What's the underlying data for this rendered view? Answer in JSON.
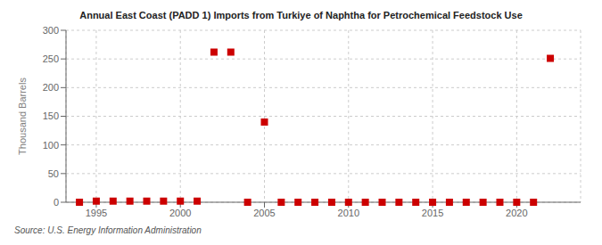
{
  "chart_data": {
    "type": "scatter",
    "title": "Annual East Coast (PADD 1) Imports from Turkiye of Naphtha for Petrochemical Feedstock Use",
    "ylabel": "Thousand Barrels",
    "source": "Source: U.S. Energy Information Administration",
    "x": [
      1994,
      1995,
      1996,
      1997,
      1998,
      1999,
      2000,
      2001,
      2002,
      2003,
      2004,
      2005,
      2006,
      2007,
      2008,
      2009,
      2010,
      2011,
      2012,
      2013,
      2014,
      2015,
      2016,
      2017,
      2018,
      2019,
      2020,
      2021,
      2022
    ],
    "values": [
      0,
      2,
      2,
      2,
      2,
      2,
      2,
      2,
      262,
      262,
      0,
      140,
      0,
      0,
      0,
      0,
      0,
      0,
      0,
      0,
      0,
      0,
      0,
      0,
      0,
      0,
      0,
      0,
      251
    ],
    "color": "#cc0000",
    "marker": "square",
    "xlim": [
      1993.2,
      2023.8
    ],
    "ylim": [
      0,
      300
    ],
    "xticks": [
      1995,
      2000,
      2005,
      2010,
      2015,
      2020
    ],
    "yticks": [
      0,
      50,
      100,
      150,
      200,
      250,
      300
    ],
    "grid": true
  }
}
